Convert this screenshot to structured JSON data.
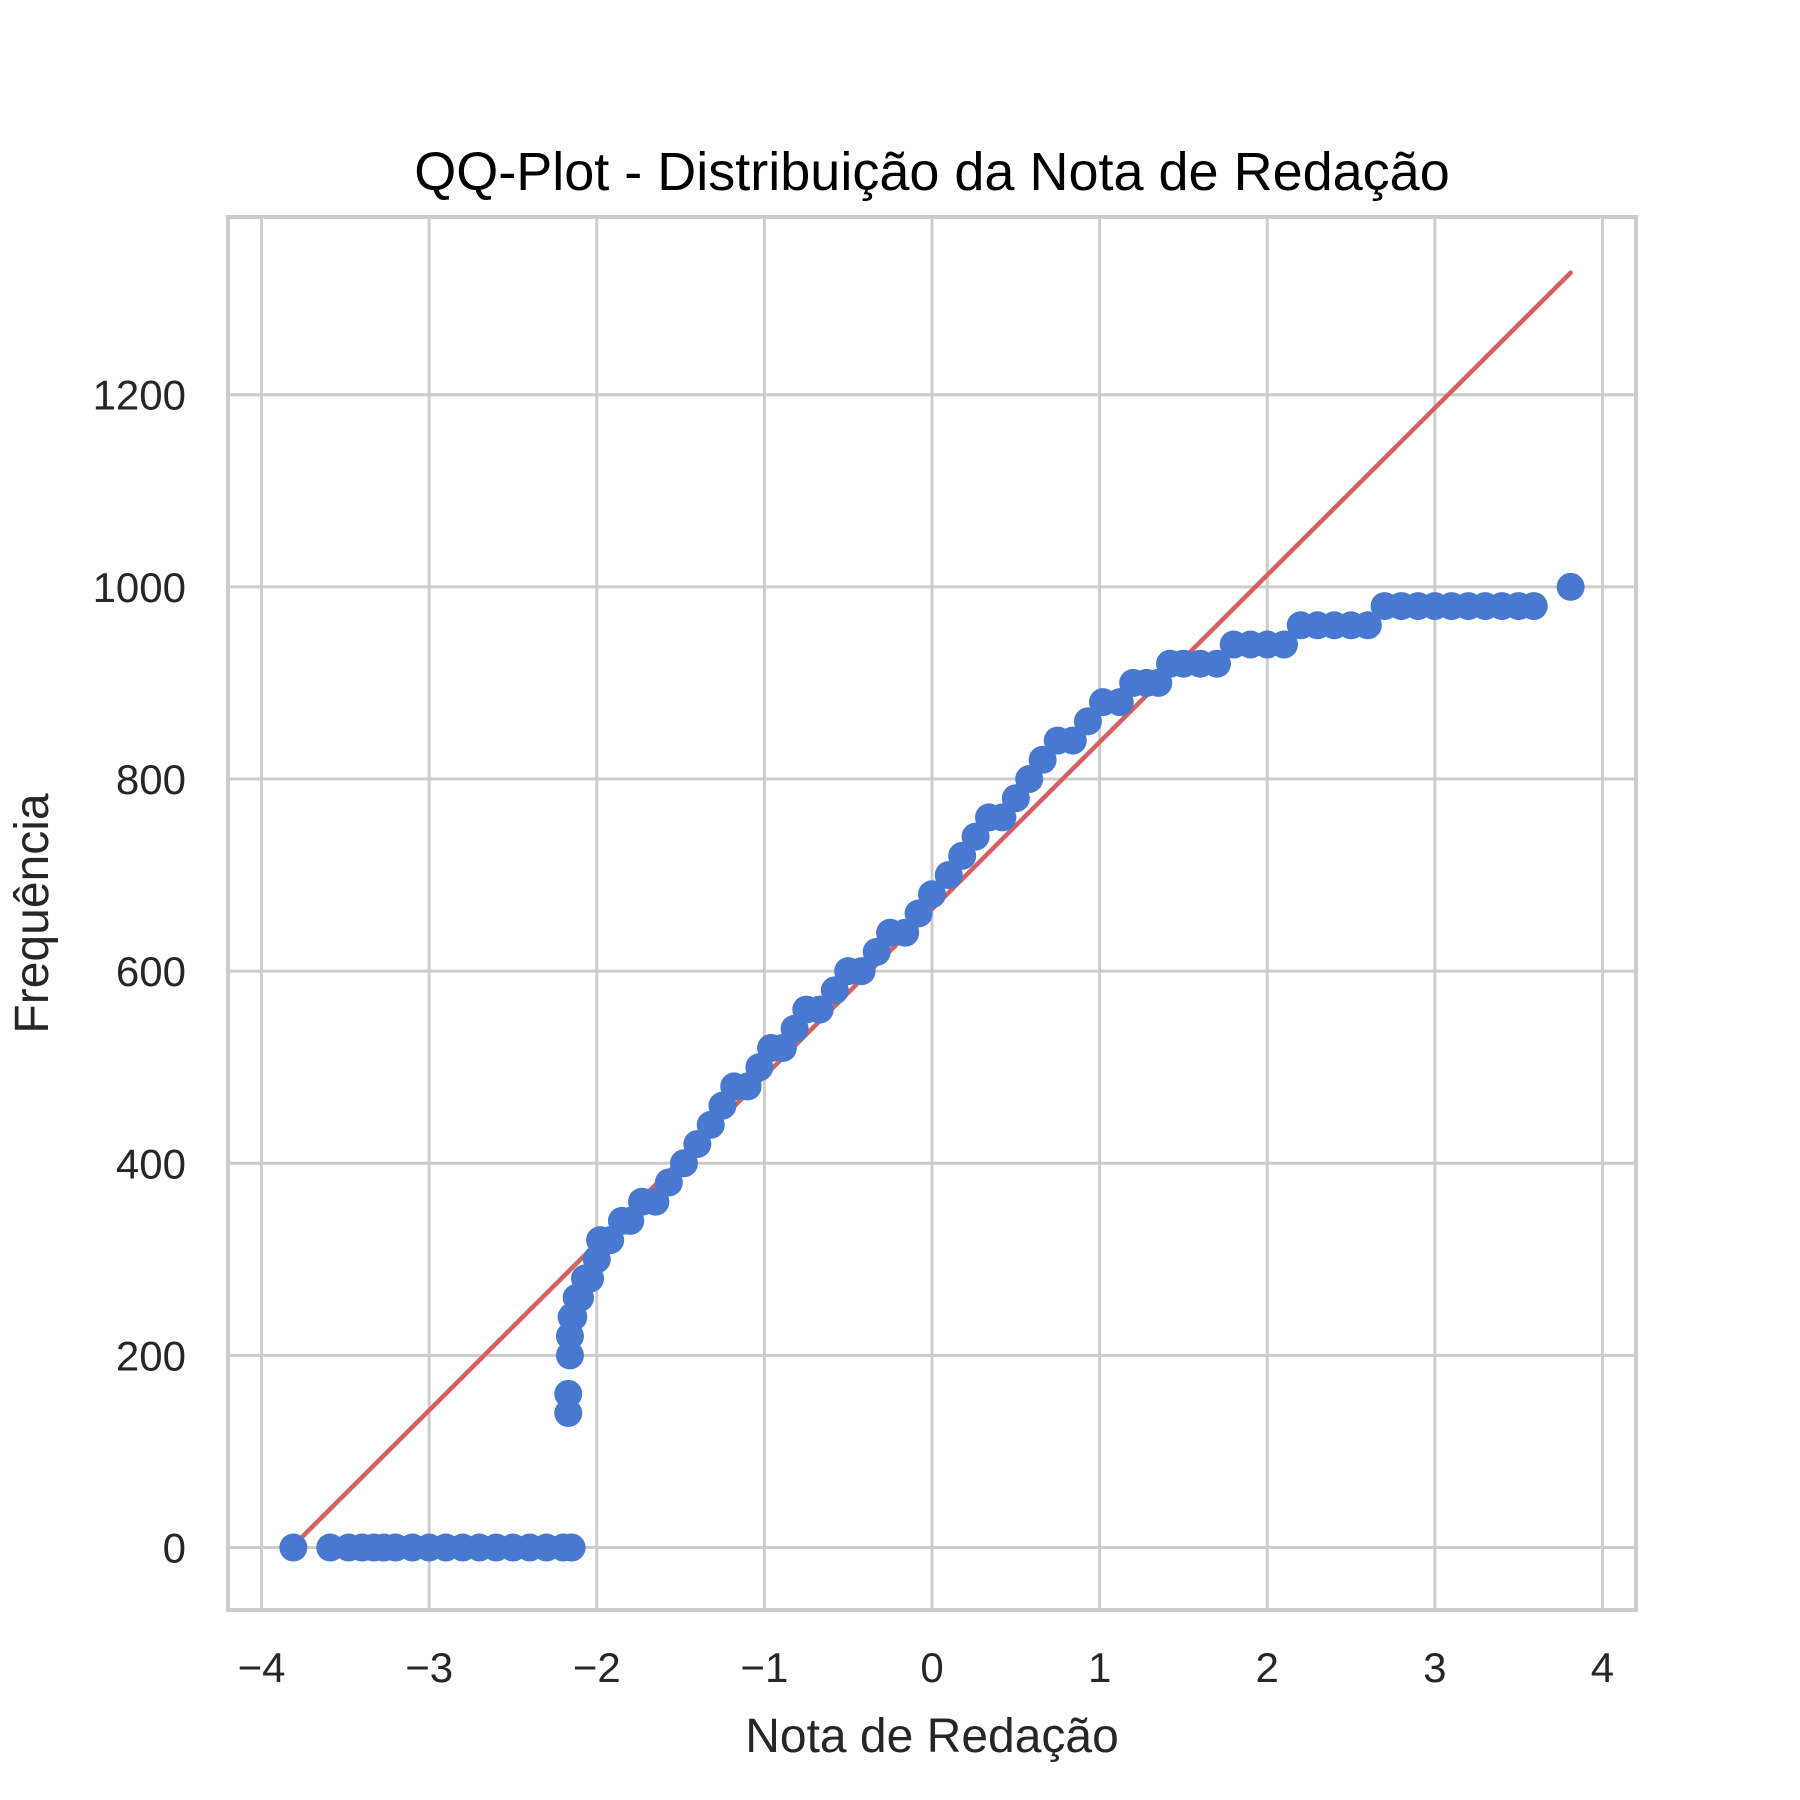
{
  "chart_data": {
    "type": "scatter",
    "title": "QQ-Plot - Distribuição da Nota de Redação",
    "xlabel": "Nota de Redação",
    "ylabel": "Frequência",
    "xlim": [
      -4.2,
      4.2
    ],
    "ylim": [
      -65,
      1385
    ],
    "xticks": [
      -4,
      -3,
      -2,
      -1,
      0,
      1,
      2,
      3,
      4
    ],
    "xtick_labels": [
      "−4",
      "−3",
      "−2",
      "−1",
      "0",
      "1",
      "2",
      "3",
      "4"
    ],
    "yticks": [
      0,
      200,
      400,
      600,
      800,
      1000,
      1200
    ],
    "ytick_labels": [
      "0",
      "200",
      "400",
      "600",
      "800",
      "1000",
      "1200"
    ],
    "grid": true,
    "colors": {
      "points": "#4878d0",
      "line": "#d65f5f",
      "grid": "#cccccc"
    },
    "series": [
      {
        "kind": "points",
        "x": [
          -3.81,
          -3.59,
          -3.48,
          -3.4,
          -3.33,
          -3.27,
          -3.2,
          -3.1,
          -3.0,
          -2.9,
          -2.8,
          -2.7,
          -2.6,
          -2.5,
          -2.4,
          -2.3,
          -2.2,
          -2.15,
          -2.17,
          -2.17,
          -2.16,
          -2.16,
          -2.15,
          -2.14,
          -2.12,
          -2.1,
          -2.07,
          -2.04,
          -2.0,
          -1.98,
          -1.92,
          -1.85,
          -1.8,
          -1.73,
          -1.65,
          -1.57,
          -1.48,
          -1.4,
          -1.32,
          -1.25,
          -1.18,
          -1.1,
          -1.03,
          -0.96,
          -0.89,
          -0.82,
          -0.75,
          -0.67,
          -0.58,
          -0.5,
          -0.42,
          -0.33,
          -0.25,
          -0.16,
          -0.08,
          0.0,
          0.1,
          0.18,
          0.26,
          0.34,
          0.42,
          0.5,
          0.58,
          0.66,
          0.75,
          0.84,
          0.93,
          1.02,
          1.12,
          1.2,
          1.28,
          1.35,
          1.42,
          1.5,
          1.6,
          1.7,
          1.8,
          1.9,
          2.0,
          2.1,
          2.2,
          2.3,
          2.4,
          2.5,
          2.6,
          2.7,
          2.8,
          2.9,
          3.0,
          3.1,
          3.2,
          3.3,
          3.4,
          3.5,
          3.59,
          3.81
        ],
        "y": [
          0,
          0,
          0,
          0,
          0,
          0,
          0,
          0,
          0,
          0,
          0,
          0,
          0,
          0,
          0,
          0,
          0,
          0,
          140,
          160,
          200,
          220,
          240,
          240,
          260,
          260,
          280,
          280,
          300,
          320,
          320,
          340,
          340,
          360,
          360,
          380,
          400,
          420,
          440,
          460,
          480,
          480,
          500,
          520,
          520,
          540,
          560,
          560,
          580,
          600,
          600,
          620,
          640,
          640,
          660,
          680,
          700,
          720,
          740,
          760,
          760,
          780,
          800,
          820,
          840,
          840,
          860,
          880,
          880,
          900,
          900,
          900,
          920,
          920,
          920,
          920,
          940,
          940,
          940,
          940,
          960,
          960,
          960,
          960,
          960,
          980,
          980,
          980,
          980,
          980,
          980,
          980,
          980,
          980,
          980,
          1000
        ]
      },
      {
        "kind": "line",
        "x": [
          -3.81,
          3.81
        ],
        "y": [
          2,
          1327
        ]
      }
    ]
  }
}
